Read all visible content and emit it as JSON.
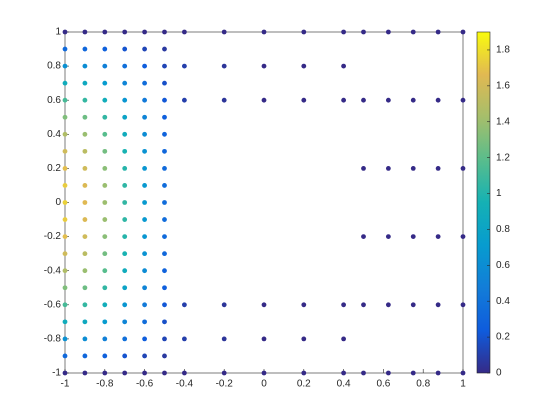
{
  "chart_data": {
    "type": "scatter",
    "xlim": [
      -1,
      1
    ],
    "ylim": [
      -1,
      1
    ],
    "xticks": [
      -1,
      -0.8,
      -0.6,
      -0.4,
      -0.2,
      0,
      0.2,
      0.4,
      0.6,
      0.8,
      1
    ],
    "yticks": [
      -1,
      -0.8,
      -0.6,
      -0.4,
      -0.2,
      0,
      0.2,
      0.4,
      0.6,
      0.8,
      1
    ],
    "colorbar": true,
    "clim": [
      0,
      1.9
    ],
    "cticks": [
      0,
      0.2,
      0.4,
      0.6,
      0.8,
      1,
      1.2,
      1.4,
      1.6,
      1.8
    ],
    "colormap": "parula",
    "series": [
      {
        "x": [
          -1,
          -1,
          -1,
          -1,
          -1,
          -1,
          -1,
          -1,
          -1,
          -1,
          -1,
          -1,
          -1,
          -1,
          -1,
          -1,
          -1,
          -1,
          -1,
          -1,
          -1
        ],
        "y": [
          -1,
          -0.9,
          -0.8,
          -0.7,
          -0.6,
          -0.5,
          -0.4,
          -0.3,
          -0.2,
          -0.1,
          0,
          0.1,
          0.2,
          0.3,
          0.4,
          0.5,
          0.6,
          0.7,
          0.8,
          0.9,
          1
        ],
        "c": [
          0,
          0.33,
          0.63,
          0.89,
          1.12,
          1.31,
          1.47,
          1.59,
          1.68,
          1.73,
          1.75,
          1.73,
          1.68,
          1.59,
          1.47,
          1.31,
          1.12,
          0.89,
          0.63,
          0.33,
          0
        ]
      },
      {
        "x": [
          -0.9,
          -0.9,
          -0.9,
          -0.9,
          -0.9,
          -0.9,
          -0.9,
          -0.9,
          -0.9,
          -0.9,
          -0.9,
          -0.9,
          -0.9,
          -0.9,
          -0.9,
          -0.9,
          -0.9,
          -0.9,
          -0.9,
          -0.9,
          -0.9
        ],
        "y": [
          -1,
          -0.9,
          -0.8,
          -0.7,
          -0.6,
          -0.5,
          -0.4,
          -0.3,
          -0.2,
          -0.1,
          0,
          0.1,
          0.2,
          0.3,
          0.4,
          0.5,
          0.6,
          0.7,
          0.8,
          0.9,
          1
        ],
        "c": [
          0,
          0.32,
          0.6,
          0.85,
          1.06,
          1.25,
          1.39,
          1.51,
          1.59,
          1.64,
          1.66,
          1.64,
          1.59,
          1.51,
          1.39,
          1.25,
          1.06,
          0.85,
          0.6,
          0.32,
          0
        ]
      },
      {
        "x": [
          -0.8,
          -0.8,
          -0.8,
          -0.8,
          -0.8,
          -0.8,
          -0.8,
          -0.8,
          -0.8,
          -0.8,
          -0.8,
          -0.8,
          -0.8,
          -0.8,
          -0.8,
          -0.8,
          -0.8,
          -0.8,
          -0.8,
          -0.8,
          -0.8
        ],
        "y": [
          -1,
          -0.9,
          -0.8,
          -0.7,
          -0.6,
          -0.5,
          -0.4,
          -0.3,
          -0.2,
          -0.1,
          0,
          0.1,
          0.2,
          0.3,
          0.4,
          0.5,
          0.6,
          0.7,
          0.8,
          0.9,
          1
        ],
        "c": [
          0,
          0.27,
          0.5,
          0.71,
          0.9,
          1.05,
          1.18,
          1.27,
          1.34,
          1.39,
          1.4,
          1.39,
          1.34,
          1.27,
          1.18,
          1.05,
          0.9,
          0.71,
          0.5,
          0.27,
          0
        ]
      },
      {
        "x": [
          -0.7,
          -0.7,
          -0.7,
          -0.7,
          -0.7,
          -0.7,
          -0.7,
          -0.7,
          -0.7,
          -0.7,
          -0.7,
          -0.7,
          -0.7,
          -0.7,
          -0.7,
          -0.7,
          -0.7,
          -0.7,
          -0.7,
          -0.7,
          -0.7
        ],
        "y": [
          -1,
          -0.9,
          -0.8,
          -0.7,
          -0.6,
          -0.5,
          -0.4,
          -0.3,
          -0.2,
          -0.1,
          0,
          0.1,
          0.2,
          0.3,
          0.4,
          0.5,
          0.6,
          0.7,
          0.8,
          0.9,
          1
        ],
        "c": [
          0,
          0.2,
          0.38,
          0.54,
          0.67,
          0.79,
          0.88,
          0.96,
          1.01,
          1.04,
          1.05,
          1.04,
          1.01,
          0.96,
          0.88,
          0.79,
          0.67,
          0.54,
          0.38,
          0.2,
          0
        ]
      },
      {
        "x": [
          -0.6,
          -0.6,
          -0.6,
          -0.6,
          -0.6,
          -0.6,
          -0.6,
          -0.6,
          -0.6,
          -0.6,
          -0.6,
          -0.6,
          -0.6,
          -0.6,
          -0.6,
          -0.6,
          -0.6,
          -0.6,
          -0.6,
          -0.6,
          -0.6
        ],
        "y": [
          -1,
          -0.9,
          -0.8,
          -0.7,
          -0.6,
          -0.5,
          -0.4,
          -0.3,
          -0.2,
          -0.1,
          0,
          0.1,
          0.2,
          0.3,
          0.4,
          0.5,
          0.6,
          0.7,
          0.8,
          0.9,
          1
        ],
        "c": [
          0,
          0.13,
          0.25,
          0.36,
          0.45,
          0.53,
          0.59,
          0.64,
          0.67,
          0.69,
          0.7,
          0.69,
          0.67,
          0.64,
          0.59,
          0.53,
          0.45,
          0.36,
          0.25,
          0.13,
          0
        ]
      },
      {
        "x": [
          -0.5,
          -0.5,
          -0.5,
          -0.5,
          -0.5,
          -0.5,
          -0.5,
          -0.5,
          -0.5,
          -0.5,
          -0.5,
          -0.5,
          -0.5,
          -0.5,
          -0.5,
          -0.5,
          -0.5,
          -0.5,
          -0.5,
          -0.5,
          -0.5
        ],
        "y": [
          -1,
          -0.9,
          -0.8,
          -0.7,
          -0.6,
          -0.5,
          -0.4,
          -0.3,
          -0.2,
          -0.1,
          0,
          0.1,
          0.2,
          0.3,
          0.4,
          0.5,
          0.6,
          0.7,
          0.8,
          0.9,
          1
        ],
        "c": [
          0,
          0.07,
          0.13,
          0.18,
          0.22,
          0.26,
          0.29,
          0.32,
          0.34,
          0.35,
          0.35,
          0.35,
          0.34,
          0.32,
          0.29,
          0.26,
          0.22,
          0.18,
          0.13,
          0.07,
          0
        ]
      },
      {
        "x": [
          -0.4,
          -0.4,
          -0.4,
          -0.4,
          -0.4,
          -0.4,
          -0.2,
          -0.2,
          -0.2,
          -0.2,
          -0.2,
          -0.2,
          0,
          0,
          0,
          0,
          0,
          0,
          0.2,
          0.2,
          0.2,
          0.2,
          0.2,
          0.2,
          0.4,
          0.4,
          0.4,
          0.4,
          0.4,
          0.4
        ],
        "y": [
          -1,
          -0.8,
          -0.6,
          0.6,
          0.8,
          1,
          -1,
          -0.8,
          -0.6,
          0.6,
          0.8,
          1,
          -1,
          -0.8,
          -0.6,
          0.6,
          0.8,
          1,
          -1,
          -0.8,
          -0.6,
          0.6,
          0.8,
          1,
          -1,
          -0.8,
          -0.6,
          0.6,
          0.8,
          1
        ],
        "c": [
          0,
          0.1,
          0.1,
          0.1,
          0.1,
          0,
          0,
          0.05,
          0.05,
          0.05,
          0.05,
          0,
          0,
          0,
          0,
          0,
          0,
          0,
          0,
          0,
          0,
          0,
          0,
          0,
          0,
          0,
          0,
          0,
          0,
          0
        ]
      },
      {
        "x": [
          0.5,
          0.5,
          0.5,
          0.5,
          0.5,
          0.5,
          0.625,
          0.625,
          0.625,
          0.625,
          0.625,
          0.625,
          0.75,
          0.75,
          0.75,
          0.75,
          0.75,
          0.75,
          0.875,
          0.875,
          0.875,
          0.875,
          0.875,
          0.875,
          1,
          1,
          1,
          1,
          1,
          1
        ],
        "y": [
          -1,
          -0.6,
          -0.2,
          0.2,
          0.6,
          1,
          -1,
          -0.6,
          -0.2,
          0.2,
          0.6,
          1,
          -1,
          -0.6,
          -0.2,
          0.2,
          0.6,
          1,
          -1,
          -0.6,
          -0.2,
          0.2,
          0.6,
          1,
          -1,
          -0.6,
          -0.2,
          0.2,
          0.6,
          1
        ],
        "c": [
          0,
          0,
          0,
          0,
          0,
          0,
          0,
          0,
          0,
          0,
          0,
          0,
          0,
          0,
          0,
          0,
          0,
          0,
          0,
          0,
          0,
          0,
          0,
          0,
          0,
          0,
          0,
          0,
          0,
          0
        ]
      }
    ]
  }
}
